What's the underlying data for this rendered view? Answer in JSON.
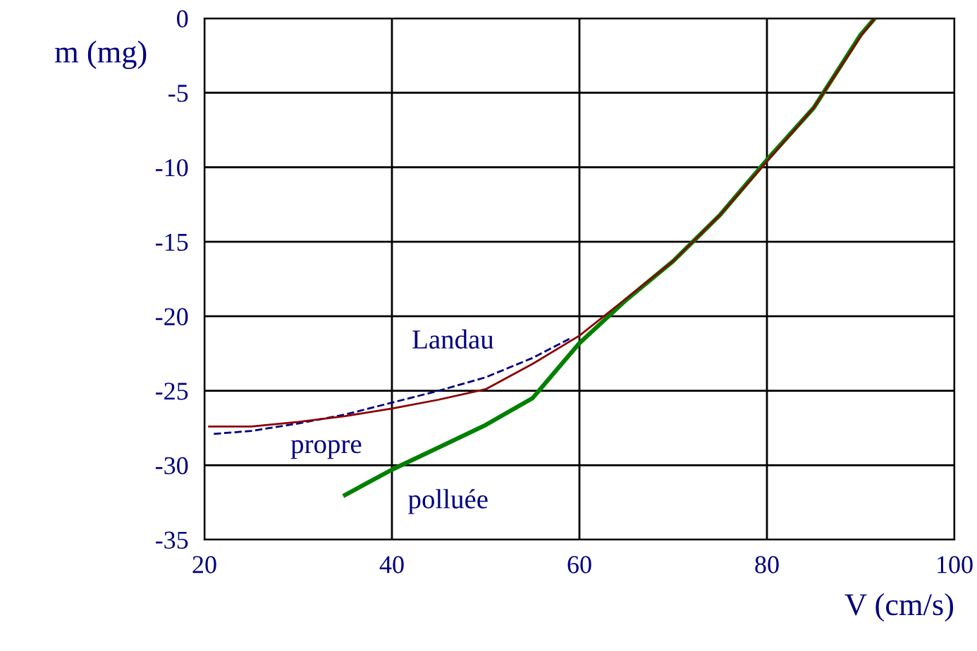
{
  "chart_data": {
    "type": "line",
    "xlabel": "V (cm/s)",
    "ylabel": "m (mg)",
    "xlim": [
      20,
      100
    ],
    "xticks": [
      20,
      40,
      60,
      80,
      100
    ],
    "ylim": [
      -35,
      0
    ],
    "yticks": [
      -35,
      -30,
      -25,
      -20,
      -15,
      -10,
      -5,
      0
    ],
    "grid": true,
    "series": [
      {
        "color": "#000080",
        "line_style": "dashed",
        "x": [
          21,
          25,
          30,
          35,
          40,
          45,
          50,
          55,
          59
        ],
        "values": [
          -27.9,
          -27.7,
          -27.2,
          -26.6,
          -25.8,
          -25.0,
          -24.1,
          -22.8,
          -21.5
        ]
      },
      {
        "color": "#8b0000",
        "x": [
          20.5,
          25,
          30,
          35,
          40,
          45,
          50,
          55,
          60,
          65,
          70,
          75,
          80,
          85,
          90,
          91.5
        ],
        "values": [
          -27.4,
          -27.4,
          -27.1,
          -26.7,
          -26.2,
          -25.6,
          -24.9,
          -23.2,
          -21.3,
          -18.8,
          -16.3,
          -13.2,
          -9.6,
          -6.0,
          -1.2,
          0
        ]
      },
      {
        "color": "#008000",
        "x": [
          35,
          40,
          45,
          50,
          55,
          60,
          65,
          70,
          75,
          80,
          85,
          90,
          91.5
        ],
        "values": [
          -32.0,
          -30.3,
          -28.8,
          -27.3,
          -25.5,
          -21.8,
          -18.9,
          -16.3,
          -13.2,
          -9.5,
          -6.0,
          -1.1,
          0
        ]
      }
    ],
    "annotations": [
      {
        "text": "Landau",
        "x": 46.5,
        "y": -25.4
      },
      {
        "text": "propre",
        "x": 33,
        "y": -26.9
      },
      {
        "text": "polluée",
        "x": 46,
        "y": -28.5
      }
    ]
  }
}
